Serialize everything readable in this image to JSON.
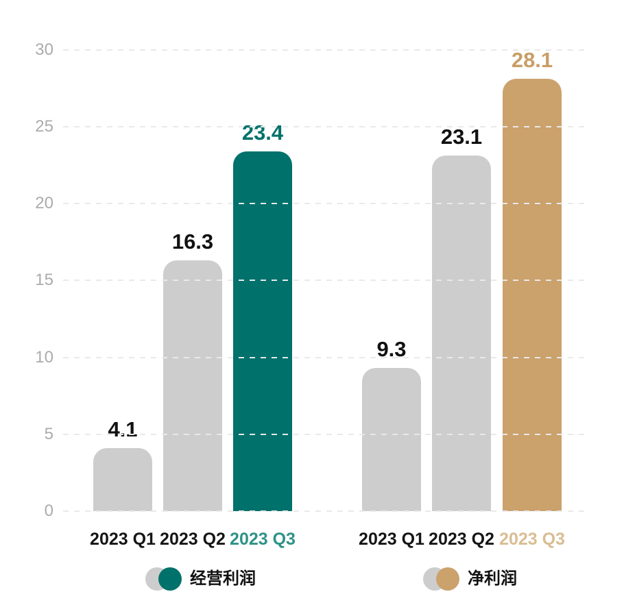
{
  "colors": {
    "background": "#FFFFFF",
    "gray_bar": "#CDCDCD",
    "teal": "#00716B",
    "tan": "#CBA16C",
    "axis_text": "#ABABAB",
    "gridline": "#E9E9E9",
    "label_black": "#111111",
    "teal_xlabel": "#2E9288",
    "tan_xlabel": "#D9BD93"
  },
  "chart_data": {
    "type": "bar",
    "title": "",
    "xlabel": "",
    "ylabel": "",
    "ylim": [
      0,
      30
    ],
    "yticks": [
      0,
      5,
      10,
      15,
      20,
      25,
      30
    ],
    "grid": "horizontal-dashed",
    "legend_position": "bottom",
    "groups": [
      {
        "name": "经营利润",
        "categories": [
          "2023 Q1",
          "2023 Q2",
          "2023 Q3"
        ],
        "values": [
          4.1,
          16.3,
          23.4
        ],
        "value_labels": [
          "4.1",
          "16.3",
          "23.4"
        ],
        "highlight_index": 2,
        "bar_color": "#CDCDCD",
        "highlight_color": "#00716B",
        "highlight_value_color": "#00716B",
        "highlight_xlabel_color": "#2E9288"
      },
      {
        "name": "净利润",
        "categories": [
          "2023 Q1",
          "2023 Q2",
          "2023 Q3"
        ],
        "values": [
          9.3,
          23.1,
          28.1
        ],
        "value_labels": [
          "9.3",
          "23.1",
          "28.1"
        ],
        "highlight_index": 2,
        "bar_color": "#CDCDCD",
        "highlight_color": "#CBA16C",
        "highlight_value_color": "#C89E66",
        "highlight_xlabel_color": "#D9BD93"
      }
    ]
  }
}
